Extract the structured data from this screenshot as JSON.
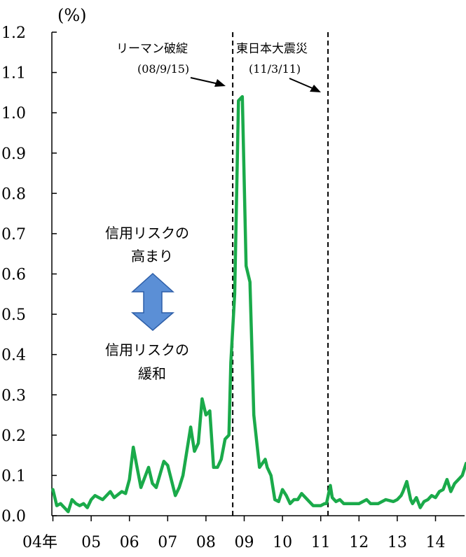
{
  "chart_data": {
    "type": "line",
    "unit_label": "(%)",
    "ylim": [
      0,
      1.2
    ],
    "yticks": [
      "0.0",
      "0.1",
      "0.2",
      "0.3",
      "0.4",
      "0.5",
      "0.6",
      "0.7",
      "0.8",
      "0.9",
      "1.0",
      "1.1",
      "1.2"
    ],
    "xlim": [
      2004.0,
      2014.83
    ],
    "xticks": [
      {
        "label": "04年",
        "year": 2004
      },
      {
        "label": "05",
        "year": 2005
      },
      {
        "label": "06",
        "year": 2006
      },
      {
        "label": "07",
        "year": 2007
      },
      {
        "label": "08",
        "year": 2008
      },
      {
        "label": "09",
        "year": 2009
      },
      {
        "label": "10",
        "year": 2010
      },
      {
        "label": "11",
        "year": 2011
      },
      {
        "label": "12",
        "year": 2012
      },
      {
        "label": "13",
        "year": 2013
      },
      {
        "label": "14",
        "year": 2014
      }
    ],
    "line_color": "#1aaa4a",
    "series": [
      {
        "x": [
          2004.0,
          2004.1,
          2004.2,
          2004.3,
          2004.4,
          2004.5,
          2004.6,
          2004.7,
          2004.8,
          2004.9,
          2005.0,
          2005.1,
          2005.2,
          2005.3,
          2005.5,
          2005.6,
          2005.8,
          2005.9,
          2006.0,
          2006.1,
          2006.2,
          2006.3,
          2006.5,
          2006.6,
          2006.7,
          2006.9,
          2007.0,
          2007.2,
          2007.3,
          2007.4,
          2007.6,
          2007.7,
          2007.8,
          2007.9,
          2008.0,
          2008.1,
          2008.2,
          2008.3,
          2008.4,
          2008.5,
          2008.6,
          2008.65,
          2008.75,
          2008.85,
          2008.95,
          2009.05,
          2009.15,
          2009.25,
          2009.4,
          2009.55,
          2009.6,
          2009.7,
          2009.8,
          2009.9,
          2010.0,
          2010.1,
          2010.2,
          2010.3,
          2010.4,
          2010.5,
          2010.6,
          2010.7,
          2010.8,
          2010.9,
          2011.0,
          2011.1,
          2011.15,
          2011.25,
          2011.3,
          2011.4,
          2011.5,
          2011.6,
          2011.8,
          2012.0,
          2012.2,
          2012.3,
          2012.5,
          2012.7,
          2012.9,
          2013.0,
          2013.1,
          2013.15,
          2013.25,
          2013.35,
          2013.4,
          2013.5,
          2013.6,
          2013.7,
          2013.8,
          2013.9,
          2014.0,
          2014.1,
          2014.2,
          2014.3,
          2014.4,
          2014.5,
          2014.6,
          2014.7,
          2014.8
        ],
        "y": [
          0.065,
          0.025,
          0.03,
          0.02,
          0.01,
          0.04,
          0.03,
          0.025,
          0.03,
          0.02,
          0.04,
          0.05,
          0.045,
          0.04,
          0.06,
          0.045,
          0.06,
          0.055,
          0.09,
          0.17,
          0.12,
          0.07,
          0.12,
          0.08,
          0.07,
          0.135,
          0.125,
          0.05,
          0.07,
          0.1,
          0.22,
          0.16,
          0.18,
          0.29,
          0.25,
          0.26,
          0.12,
          0.12,
          0.14,
          0.19,
          0.2,
          0.38,
          0.55,
          1.03,
          1.04,
          0.62,
          0.58,
          0.25,
          0.12,
          0.14,
          0.12,
          0.1,
          0.04,
          0.035,
          0.065,
          0.05,
          0.03,
          0.04,
          0.04,
          0.055,
          0.045,
          0.035,
          0.025,
          0.025,
          0.025,
          0.03,
          0.03,
          0.075,
          0.045,
          0.035,
          0.04,
          0.03,
          0.03,
          0.03,
          0.04,
          0.03,
          0.03,
          0.04,
          0.035,
          0.04,
          0.05,
          0.06,
          0.085,
          0.04,
          0.03,
          0.045,
          0.02,
          0.035,
          0.04,
          0.05,
          0.045,
          0.06,
          0.065,
          0.09,
          0.06,
          0.08,
          0.09,
          0.1,
          0.13
        ]
      }
    ],
    "events": [
      {
        "name": "リーマン破綻",
        "date": "(08/9/15)",
        "x": 2008.7
      },
      {
        "name": "東日本大震災",
        "date": "(11/3/11)",
        "x": 2011.19
      }
    ],
    "middle_annotation": {
      "top_line1": "信用リスクの",
      "top_line2": "高まり",
      "bottom_line1": "信用リスクの",
      "bottom_line2": "緩和",
      "arrow_color": "#5b8fd6"
    }
  }
}
